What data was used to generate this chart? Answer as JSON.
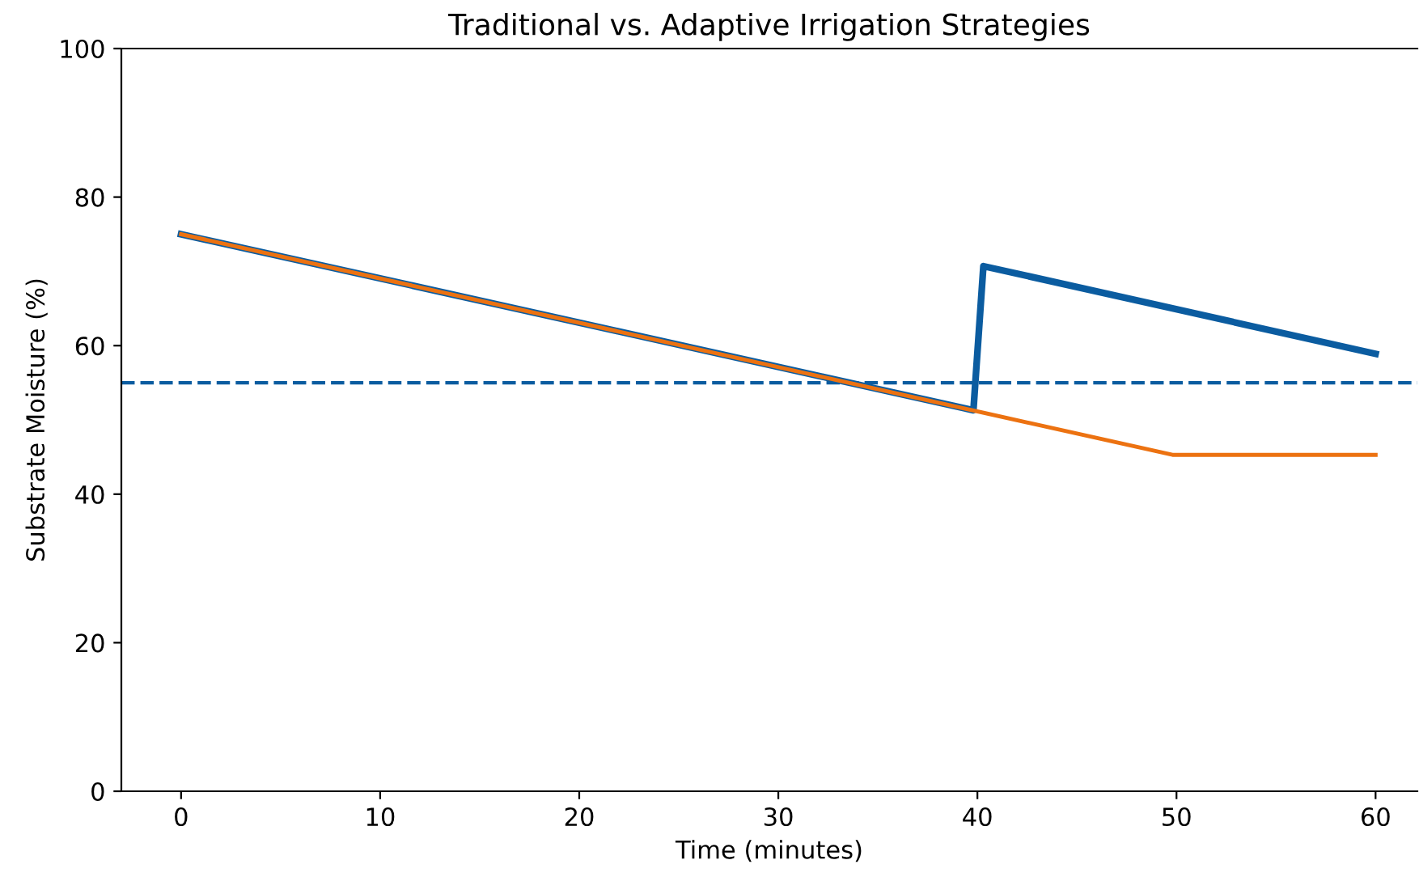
{
  "chart_data": {
    "type": "line",
    "title": "Traditional vs. Adaptive Irrigation Strategies",
    "xlabel": "Time (minutes)",
    "ylabel": "Substrate Moisture (%)",
    "series": [
      {
        "color": "#0b5ca0",
        "x": [
          0,
          39.8,
          40.3,
          60
        ],
        "values": [
          75,
          51.3,
          70.7,
          58.9
        ]
      },
      {
        "color": "#ec7211",
        "x": [
          0,
          49.8,
          60
        ],
        "values": [
          75,
          45.3,
          45.3
        ]
      }
    ],
    "xlim": [
      -3,
      62.1
    ],
    "xticks": [
      0,
      10,
      20,
      30,
      40,
      50,
      60
    ],
    "ylim": [
      0,
      100
    ],
    "yticks": [
      0,
      20,
      40,
      60,
      80,
      100
    ],
    "ref_lines": [
      {
        "axis": "y",
        "value": 55,
        "color": "#0b5ca0",
        "line_style": "dashed"
      }
    ],
    "grid": false,
    "legend": false,
    "marker": "none",
    "line_style": "solid"
  }
}
